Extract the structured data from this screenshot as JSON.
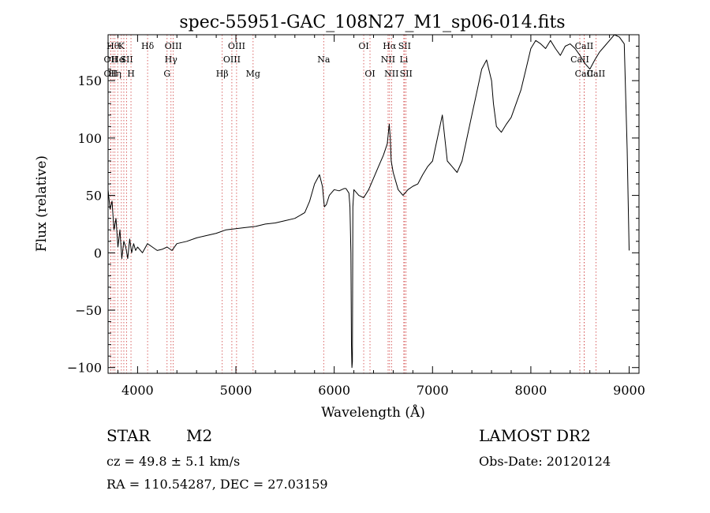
{
  "chart_data": {
    "type": "line",
    "title": "spec-55951-GAC_108N27_M1_sp06-014.fits",
    "xlabel": "Wavelength (Å)",
    "ylabel": "Flux (relative)",
    "xlim": [
      3700,
      9100
    ],
    "ylim": [
      -105,
      190
    ],
    "x_ticks": [
      4000,
      5000,
      6000,
      7000,
      8000,
      9000
    ],
    "x_tick_labels": [
      "4000",
      "5000",
      "6000",
      "7000",
      "8000",
      "9000"
    ],
    "y_ticks": [
      -100,
      -50,
      0,
      50,
      100,
      150
    ],
    "y_tick_labels": [
      "−100",
      "−50",
      "0",
      "50",
      "100",
      "150"
    ],
    "grid": false,
    "series": [
      {
        "color": "#000000",
        "x": [
          3700,
          3720,
          3740,
          3760,
          3780,
          3800,
          3820,
          3840,
          3860,
          3880,
          3900,
          3920,
          3940,
          3960,
          3980,
          4000,
          4050,
          4100,
          4150,
          4200,
          4250,
          4300,
          4350,
          4400,
          4500,
          4600,
          4700,
          4800,
          4900,
          5000,
          5100,
          5200,
          5300,
          5400,
          5500,
          5600,
          5700,
          5750,
          5800,
          5850,
          5880,
          5900,
          5920,
          5950,
          6000,
          6050,
          6100,
          6120,
          6150,
          6160,
          6170,
          6175,
          6180,
          6185,
          6190,
          6200,
          6250,
          6300,
          6350,
          6400,
          6450,
          6500,
          6540,
          6560,
          6570,
          6580,
          6600,
          6650,
          6700,
          6750,
          6800,
          6850,
          6900,
          6950,
          7000,
          7050,
          7100,
          7150,
          7200,
          7250,
          7300,
          7350,
          7400,
          7450,
          7500,
          7550,
          7600,
          7620,
          7650,
          7700,
          7750,
          7800,
          7850,
          7900,
          7950,
          8000,
          8050,
          8100,
          8150,
          8200,
          8250,
          8300,
          8350,
          8400,
          8450,
          8500,
          8550,
          8600,
          8650,
          8700,
          8750,
          8800,
          8850,
          8900,
          8950,
          8980,
          9000
        ],
        "y": [
          55,
          38,
          45,
          20,
          30,
          5,
          20,
          -5,
          10,
          5,
          -5,
          12,
          0,
          8,
          2,
          5,
          0,
          8,
          5,
          2,
          3,
          5,
          2,
          8,
          10,
          13,
          15,
          17,
          20,
          21,
          22,
          23,
          25,
          26,
          28,
          30,
          35,
          45,
          60,
          68,
          58,
          40,
          42,
          50,
          55,
          54,
          56,
          56,
          52,
          40,
          0,
          -80,
          -100,
          -95,
          40,
          55,
          50,
          48,
          55,
          65,
          75,
          85,
          95,
          112,
          100,
          80,
          70,
          55,
          50,
          55,
          58,
          60,
          68,
          75,
          80,
          100,
          120,
          80,
          75,
          70,
          80,
          100,
          120,
          140,
          160,
          168,
          150,
          130,
          110,
          105,
          112,
          118,
          130,
          142,
          160,
          178,
          185,
          182,
          178,
          185,
          178,
          172,
          180,
          182,
          178,
          172,
          165,
          160,
          168,
          175,
          180,
          185,
          190,
          188,
          182,
          90,
          2
        ]
      }
    ],
    "line_markers": [
      {
        "w": 3750,
        "label": "Hθ",
        "row": 0
      },
      {
        "w": 3727,
        "label": "OII",
        "row": 1
      },
      {
        "w": 3727,
        "label": "OII",
        "row": 2
      },
      {
        "w": 3770,
        "label": "Hη",
        "row": 2
      },
      {
        "w": 3798,
        "label": "He",
        "row": 1
      },
      {
        "w": 3835,
        "label": "K",
        "row": 0
      },
      {
        "w": 3860,
        "label": "I",
        "row": 1
      },
      {
        "w": 3889,
        "label": "SII",
        "row": 1
      },
      {
        "w": 3933,
        "label": "H",
        "row": 2
      },
      {
        "w": 4102,
        "label": "Hδ",
        "row": 0
      },
      {
        "w": 4300,
        "label": "G",
        "row": 2
      },
      {
        "w": 4340,
        "label": "Hγ",
        "row": 1
      },
      {
        "w": 4363,
        "label": "OIII",
        "row": 0
      },
      {
        "w": 4861,
        "label": "Hβ",
        "row": 2
      },
      {
        "w": 4959,
        "label": "OIII",
        "row": 1
      },
      {
        "w": 5007,
        "label": "OIII",
        "row": 0
      },
      {
        "w": 5175,
        "label": "Mg",
        "row": 2
      },
      {
        "w": 5893,
        "label": "Na",
        "row": 1
      },
      {
        "w": 6300,
        "label": "OI",
        "row": 0
      },
      {
        "w": 6364,
        "label": "OI",
        "row": 2
      },
      {
        "w": 6548,
        "label": "NII",
        "row": 1
      },
      {
        "w": 6563,
        "label": "Hα",
        "row": 0
      },
      {
        "w": 6583,
        "label": "NII",
        "row": 2
      },
      {
        "w": 6708,
        "label": "Li",
        "row": 1
      },
      {
        "w": 6716,
        "label": "SII",
        "row": 0
      },
      {
        "w": 6731,
        "label": "SII",
        "row": 2
      },
      {
        "w": 8498,
        "label": "CaII",
        "row": 1
      },
      {
        "w": 8542,
        "label": "CaII",
        "row": 0
      },
      {
        "w": 8542,
        "label": "CaII",
        "row": 2
      },
      {
        "w": 8662,
        "label": "CaII",
        "row": 2
      }
    ]
  },
  "info": {
    "class_label": "STAR",
    "subclass_label": "M2",
    "survey": "LAMOST DR2",
    "cz": "cz = 49.8 ± 5.1 km/s",
    "obs_date": "Obs-Date: 20120124",
    "coords": "RA = 110.54287, DEC =  27.03159"
  }
}
